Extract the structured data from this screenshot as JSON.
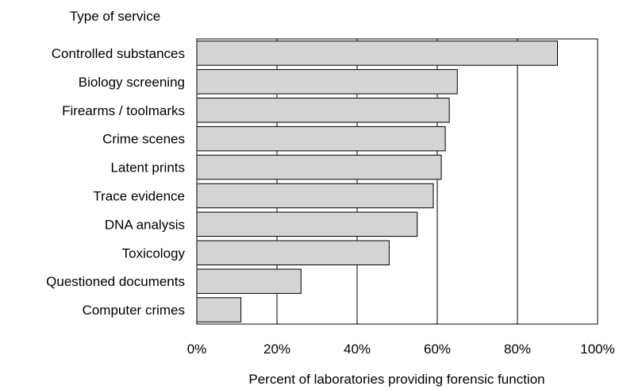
{
  "chart_data": {
    "type": "bar",
    "orientation": "horizontal",
    "title": "",
    "category_axis_title": "Type of service",
    "xlabel": "Percent of laboratories providing forensic function",
    "ylabel": "Type of service",
    "categories": [
      "Controlled substances",
      "Biology screening",
      "Firearms / toolmarks",
      "Crime scenes",
      "Latent prints",
      "Trace evidence",
      "DNA analysis",
      "Toxicology",
      "Questioned documents",
      "Computer crimes"
    ],
    "values": [
      90,
      65,
      63,
      62,
      61,
      59,
      55,
      48,
      26,
      11
    ],
    "xlim": [
      0,
      100
    ],
    "xticks": [
      0,
      20,
      40,
      60,
      80,
      100
    ],
    "tick_labels": [
      "0%",
      "20%",
      "40%",
      "60%",
      "80%",
      "100%"
    ],
    "grid": "vertical",
    "legend": "none",
    "colors": {
      "bar_fill": "#d4d4d4",
      "bar_stroke": "#000000",
      "gridline": "#000000",
      "background": "#ffffff"
    }
  }
}
